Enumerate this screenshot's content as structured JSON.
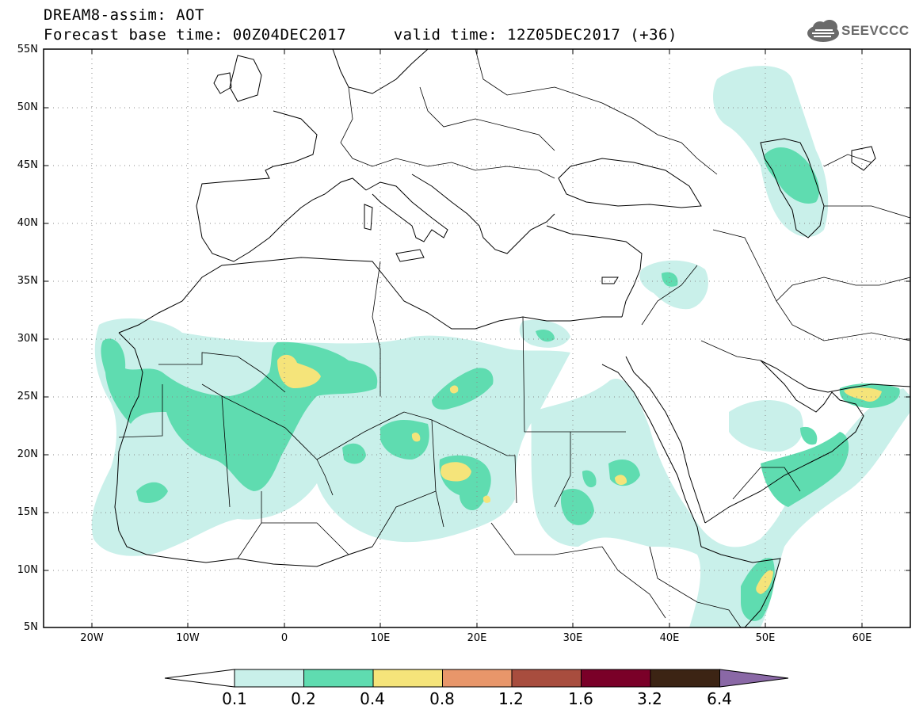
{
  "header": {
    "line1": "DREAM8-assim: AOT",
    "line2": "Forecast base time: 00Z04DEC2017     valid time: 12Z05DEC2017 (+36)"
  },
  "logo": {
    "text": "SEEVCCC",
    "icon": "cloud-icon"
  },
  "map": {
    "lat_labels": [
      "55N",
      "50N",
      "45N",
      "40N",
      "35N",
      "30N",
      "25N",
      "20N",
      "15N",
      "10N",
      "5N"
    ],
    "lon_labels": [
      "20W",
      "10W",
      "0",
      "10E",
      "20E",
      "30E",
      "40E",
      "50E",
      "60E"
    ],
    "lat_range": [
      5,
      55
    ],
    "lon_range": [
      -25,
      65
    ],
    "grid": true
  },
  "colorbar": {
    "levels": [
      "0.1",
      "0.2",
      "0.4",
      "0.8",
      "1.2",
      "1.6",
      "3.2",
      "6.4"
    ],
    "colors": [
      "#ffffff",
      "#c9f0ea",
      "#5fdcb0",
      "#f5e47a",
      "#e8966a",
      "#a84d3e",
      "#7a0028",
      "#3c2414",
      "#8a68a6"
    ]
  },
  "palette": {
    "c1": "#c9f0ea",
    "c2": "#5fdcb0",
    "c3": "#f5e47a"
  }
}
